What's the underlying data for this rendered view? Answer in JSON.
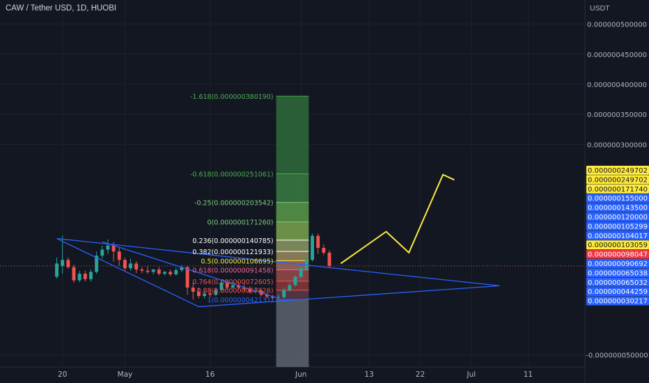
{
  "header": {
    "symbol": "CAW / Tether USD, 1D, HUOBI"
  },
  "price_axis": {
    "currency": "USDT",
    "ticks": [
      {
        "label": "0.000000500000",
        "value": 500000
      },
      {
        "label": "0.000000450000",
        "value": 450000
      },
      {
        "label": "0.000000400000",
        "value": 400000
      },
      {
        "label": "0.000000350000",
        "value": 350000
      },
      {
        "label": "0.000000300000",
        "value": 300000
      },
      {
        "label": "-0.000000050000",
        "value": -50000
      }
    ],
    "badges": [
      {
        "label": "0.000000249702",
        "value": 249702,
        "color": "#ffeb3b",
        "text": "#131722"
      },
      {
        "label": "0.000000249702",
        "value": 249702,
        "color": "#ffeb3b",
        "text": "#131722"
      },
      {
        "label": "0.000000171740",
        "value": 171740,
        "color": "#ffeb3b",
        "text": "#131722"
      },
      {
        "label": "0.000000155000",
        "value": 155000,
        "color": "#2962ff",
        "text": "#ffffff"
      },
      {
        "label": "0.000000143500",
        "value": 143500,
        "color": "#2962ff",
        "text": "#ffffff"
      },
      {
        "label": "0.000000120000",
        "value": 120000,
        "color": "#2962ff",
        "text": "#ffffff"
      },
      {
        "label": "0.000000105299",
        "value": 105299,
        "color": "#2962ff",
        "text": "#ffffff"
      },
      {
        "label": "0.000000104017",
        "value": 104017,
        "color": "#2962ff",
        "text": "#ffffff"
      },
      {
        "label": "0.000000103059",
        "value": 103059,
        "color": "#ffeb3b",
        "text": "#131722"
      },
      {
        "label": "0.000000098047",
        "value": 98047,
        "color": "#f23645",
        "text": "#ffffff"
      },
      {
        "label": "0.000000090692",
        "value": 90692,
        "color": "#2962ff",
        "text": "#ffffff"
      },
      {
        "label": "0.000000065038",
        "value": 65038,
        "color": "#2962ff",
        "text": "#ffffff"
      },
      {
        "label": "0.000000065032",
        "value": 65032,
        "color": "#2962ff",
        "text": "#ffffff"
      },
      {
        "label": "0.000000044259",
        "value": 44259,
        "color": "#2962ff",
        "text": "#ffffff"
      },
      {
        "label": "0.000000030217",
        "value": 30217,
        "color": "#2962ff",
        "text": "#ffffff"
      }
    ]
  },
  "time_axis": {
    "ticks": [
      {
        "label": "20",
        "day": -11
      },
      {
        "label": "May",
        "day": 0
      },
      {
        "label": "16",
        "day": 15
      },
      {
        "label": "Jun",
        "day": 31
      },
      {
        "label": "13",
        "day": 43
      },
      {
        "label": "22",
        "day": 52
      },
      {
        "label": "Jul",
        "day": 61
      },
      {
        "label": "11",
        "day": 71
      }
    ]
  },
  "chart_data": {
    "type": "candlestick",
    "title": "CAW / Tether USD, 1D, HUOBI",
    "ylabel": "USDT",
    "yunit": "1e-12 USDT",
    "y_range": [
      -70000,
      540000
    ],
    "x_range_days": [
      -22,
      81
    ],
    "current_price": 98047,
    "candles": [
      {
        "d": -12,
        "o": 80000,
        "h": 112000,
        "c": 102000,
        "l": 77000
      },
      {
        "d": -11,
        "o": 98000,
        "h": 148000,
        "c": 108000,
        "l": 85000
      },
      {
        "d": -10,
        "o": 108000,
        "h": 112000,
        "c": 96000,
        "l": 93000
      },
      {
        "d": -9,
        "o": 96000,
        "h": 100000,
        "c": 74000,
        "l": 70000
      },
      {
        "d": -8,
        "o": 74000,
        "h": 90000,
        "c": 85000,
        "l": 71000
      },
      {
        "d": -7,
        "o": 85000,
        "h": 90000,
        "c": 76000,
        "l": 72000
      },
      {
        "d": -6,
        "o": 76000,
        "h": 92000,
        "c": 88000,
        "l": 72000
      },
      {
        "d": -5,
        "o": 88000,
        "h": 122000,
        "c": 115000,
        "l": 85000
      },
      {
        "d": -4,
        "o": 115000,
        "h": 132000,
        "c": 125000,
        "l": 110000
      },
      {
        "d": -3,
        "o": 125000,
        "h": 142000,
        "c": 132000,
        "l": 118000
      },
      {
        "d": -2,
        "o": 132000,
        "h": 138000,
        "c": 122000,
        "l": 105000
      },
      {
        "d": -1,
        "o": 122000,
        "h": 128000,
        "c": 108000,
        "l": 98000
      },
      {
        "d": 0,
        "o": 108000,
        "h": 112000,
        "c": 94000,
        "l": 90000
      },
      {
        "d": 1,
        "o": 94000,
        "h": 110000,
        "c": 102000,
        "l": 90000
      },
      {
        "d": 2,
        "o": 102000,
        "h": 106000,
        "c": 92000,
        "l": 86000
      },
      {
        "d": 3,
        "o": 92000,
        "h": 96000,
        "c": 90000,
        "l": 86000
      },
      {
        "d": 4,
        "o": 90000,
        "h": 98000,
        "c": 88000,
        "l": 85000
      },
      {
        "d": 5,
        "o": 88000,
        "h": 93000,
        "c": 92000,
        "l": 84000
      },
      {
        "d": 6,
        "o": 92000,
        "h": 96000,
        "c": 85000,
        "l": 82000
      },
      {
        "d": 7,
        "o": 85000,
        "h": 90000,
        "c": 88000,
        "l": 82000
      },
      {
        "d": 8,
        "o": 88000,
        "h": 92000,
        "c": 84000,
        "l": 81000
      },
      {
        "d": 9,
        "o": 84000,
        "h": 95000,
        "c": 91000,
        "l": 82000
      },
      {
        "d": 10,
        "o": 91000,
        "h": 100000,
        "c": 96000,
        "l": 88000
      },
      {
        "d": 11,
        "o": 96000,
        "h": 98000,
        "c": 62000,
        "l": 50000
      },
      {
        "d": 12,
        "o": 62000,
        "h": 70000,
        "c": 55000,
        "l": 42000
      },
      {
        "d": 13,
        "o": 55000,
        "h": 62000,
        "c": 48000,
        "l": 44000
      },
      {
        "d": 14,
        "o": 48000,
        "h": 56000,
        "c": 52000,
        "l": 44000
      },
      {
        "d": 15,
        "o": 52000,
        "h": 60000,
        "c": 50000,
        "l": 46000
      },
      {
        "d": 16,
        "o": 50000,
        "h": 62000,
        "c": 58000,
        "l": 48000
      },
      {
        "d": 17,
        "o": 58000,
        "h": 74000,
        "c": 70000,
        "l": 56000
      },
      {
        "d": 18,
        "o": 70000,
        "h": 74000,
        "c": 62000,
        "l": 58000
      },
      {
        "d": 19,
        "o": 62000,
        "h": 70000,
        "c": 66000,
        "l": 60000
      },
      {
        "d": 20,
        "o": 66000,
        "h": 72000,
        "c": 62000,
        "l": 58000
      },
      {
        "d": 21,
        "o": 62000,
        "h": 68000,
        "c": 60000,
        "l": 56000
      },
      {
        "d": 22,
        "o": 60000,
        "h": 64000,
        "c": 55000,
        "l": 52000
      },
      {
        "d": 23,
        "o": 55000,
        "h": 62000,
        "c": 57000,
        "l": 52000
      },
      {
        "d": 24,
        "o": 57000,
        "h": 60000,
        "c": 50000,
        "l": 47000
      },
      {
        "d": 25,
        "o": 50000,
        "h": 54000,
        "c": 47000,
        "l": 44000
      },
      {
        "d": 26,
        "o": 47000,
        "h": 50000,
        "c": 45000,
        "l": 41000
      },
      {
        "d": 27,
        "o": 45000,
        "h": 50000,
        "c": 46000,
        "l": 41000
      },
      {
        "d": 28,
        "o": 46000,
        "h": 62000,
        "c": 58000,
        "l": 44000
      },
      {
        "d": 29,
        "o": 58000,
        "h": 70000,
        "c": 66000,
        "l": 55000
      },
      {
        "d": 30,
        "o": 66000,
        "h": 82000,
        "c": 80000,
        "l": 64000
      },
      {
        "d": 31,
        "o": 80000,
        "h": 96000,
        "c": 94000,
        "l": 78000
      },
      {
        "d": 32,
        "o": 94000,
        "h": 112000,
        "c": 108000,
        "l": 90000
      },
      {
        "d": 33,
        "o": 108000,
        "h": 152000,
        "c": 148000,
        "l": 105000
      },
      {
        "d": 34,
        "o": 148000,
        "h": 152000,
        "c": 128000,
        "l": 118000
      },
      {
        "d": 35,
        "o": 128000,
        "h": 134000,
        "c": 120000,
        "l": 116000
      },
      {
        "d": 36,
        "o": 120000,
        "h": 124000,
        "c": 98047,
        "l": 94000
      }
    ],
    "triangle": [
      {
        "d": -12,
        "y": 143500
      },
      {
        "d": 66,
        "y": 65038
      },
      {
        "d": 13,
        "y": 30217
      }
    ],
    "triangle_inner_line": [
      {
        "d": -4,
        "y": 138000
      },
      {
        "d": 27,
        "y": 44259
      }
    ],
    "projection_path": [
      {
        "d": 38,
        "y": 102000
      },
      {
        "d": 46,
        "y": 155000
      },
      {
        "d": 50,
        "y": 120000
      },
      {
        "d": 56,
        "y": 249702
      },
      {
        "d": 58,
        "y": 241000
      }
    ],
    "fib_levels": [
      {
        "label": "-1.618(0.000000380190)",
        "value": 380190,
        "color": "#4caf50"
      },
      {
        "label": "-0.618(0.000000251061)",
        "value": 251061,
        "color": "#4caf50"
      },
      {
        "label": "-0.25(0.000000203542)",
        "value": 203542,
        "color": "#81c784"
      },
      {
        "label": "0(0.000000171260)",
        "value": 171260,
        "color": "#81c784"
      },
      {
        "label": "0.236(0.000000140785)",
        "value": 140785,
        "color": "#ffffff"
      },
      {
        "label": "0.382(0.000000121933)",
        "value": 121933,
        "color": "#ffffff"
      },
      {
        "label": "0.5(0.000000106695)",
        "value": 106695,
        "color": "#ffeb3b"
      },
      {
        "label": "0.618(0.000000091458)",
        "value": 91458,
        "color": "#f06292"
      },
      {
        "label": "0.764(0.000000072605)",
        "value": 72605,
        "color": "#ef5350"
      },
      {
        "label": "0.88(0.000000057626)",
        "value": 57626,
        "color": "#ef5350"
      },
      {
        "label": "1(0.000000042131)",
        "value": 42131,
        "color": "#2962ff"
      }
    ],
    "fib_box": {
      "d0": 27,
      "d1": 32,
      "bottom": -70000
    },
    "colors": {
      "up": "#26a69a",
      "down": "#ef5350",
      "trend": "#2962ff",
      "projection": "#ffeb3b",
      "grid": "#1e222d"
    }
  }
}
